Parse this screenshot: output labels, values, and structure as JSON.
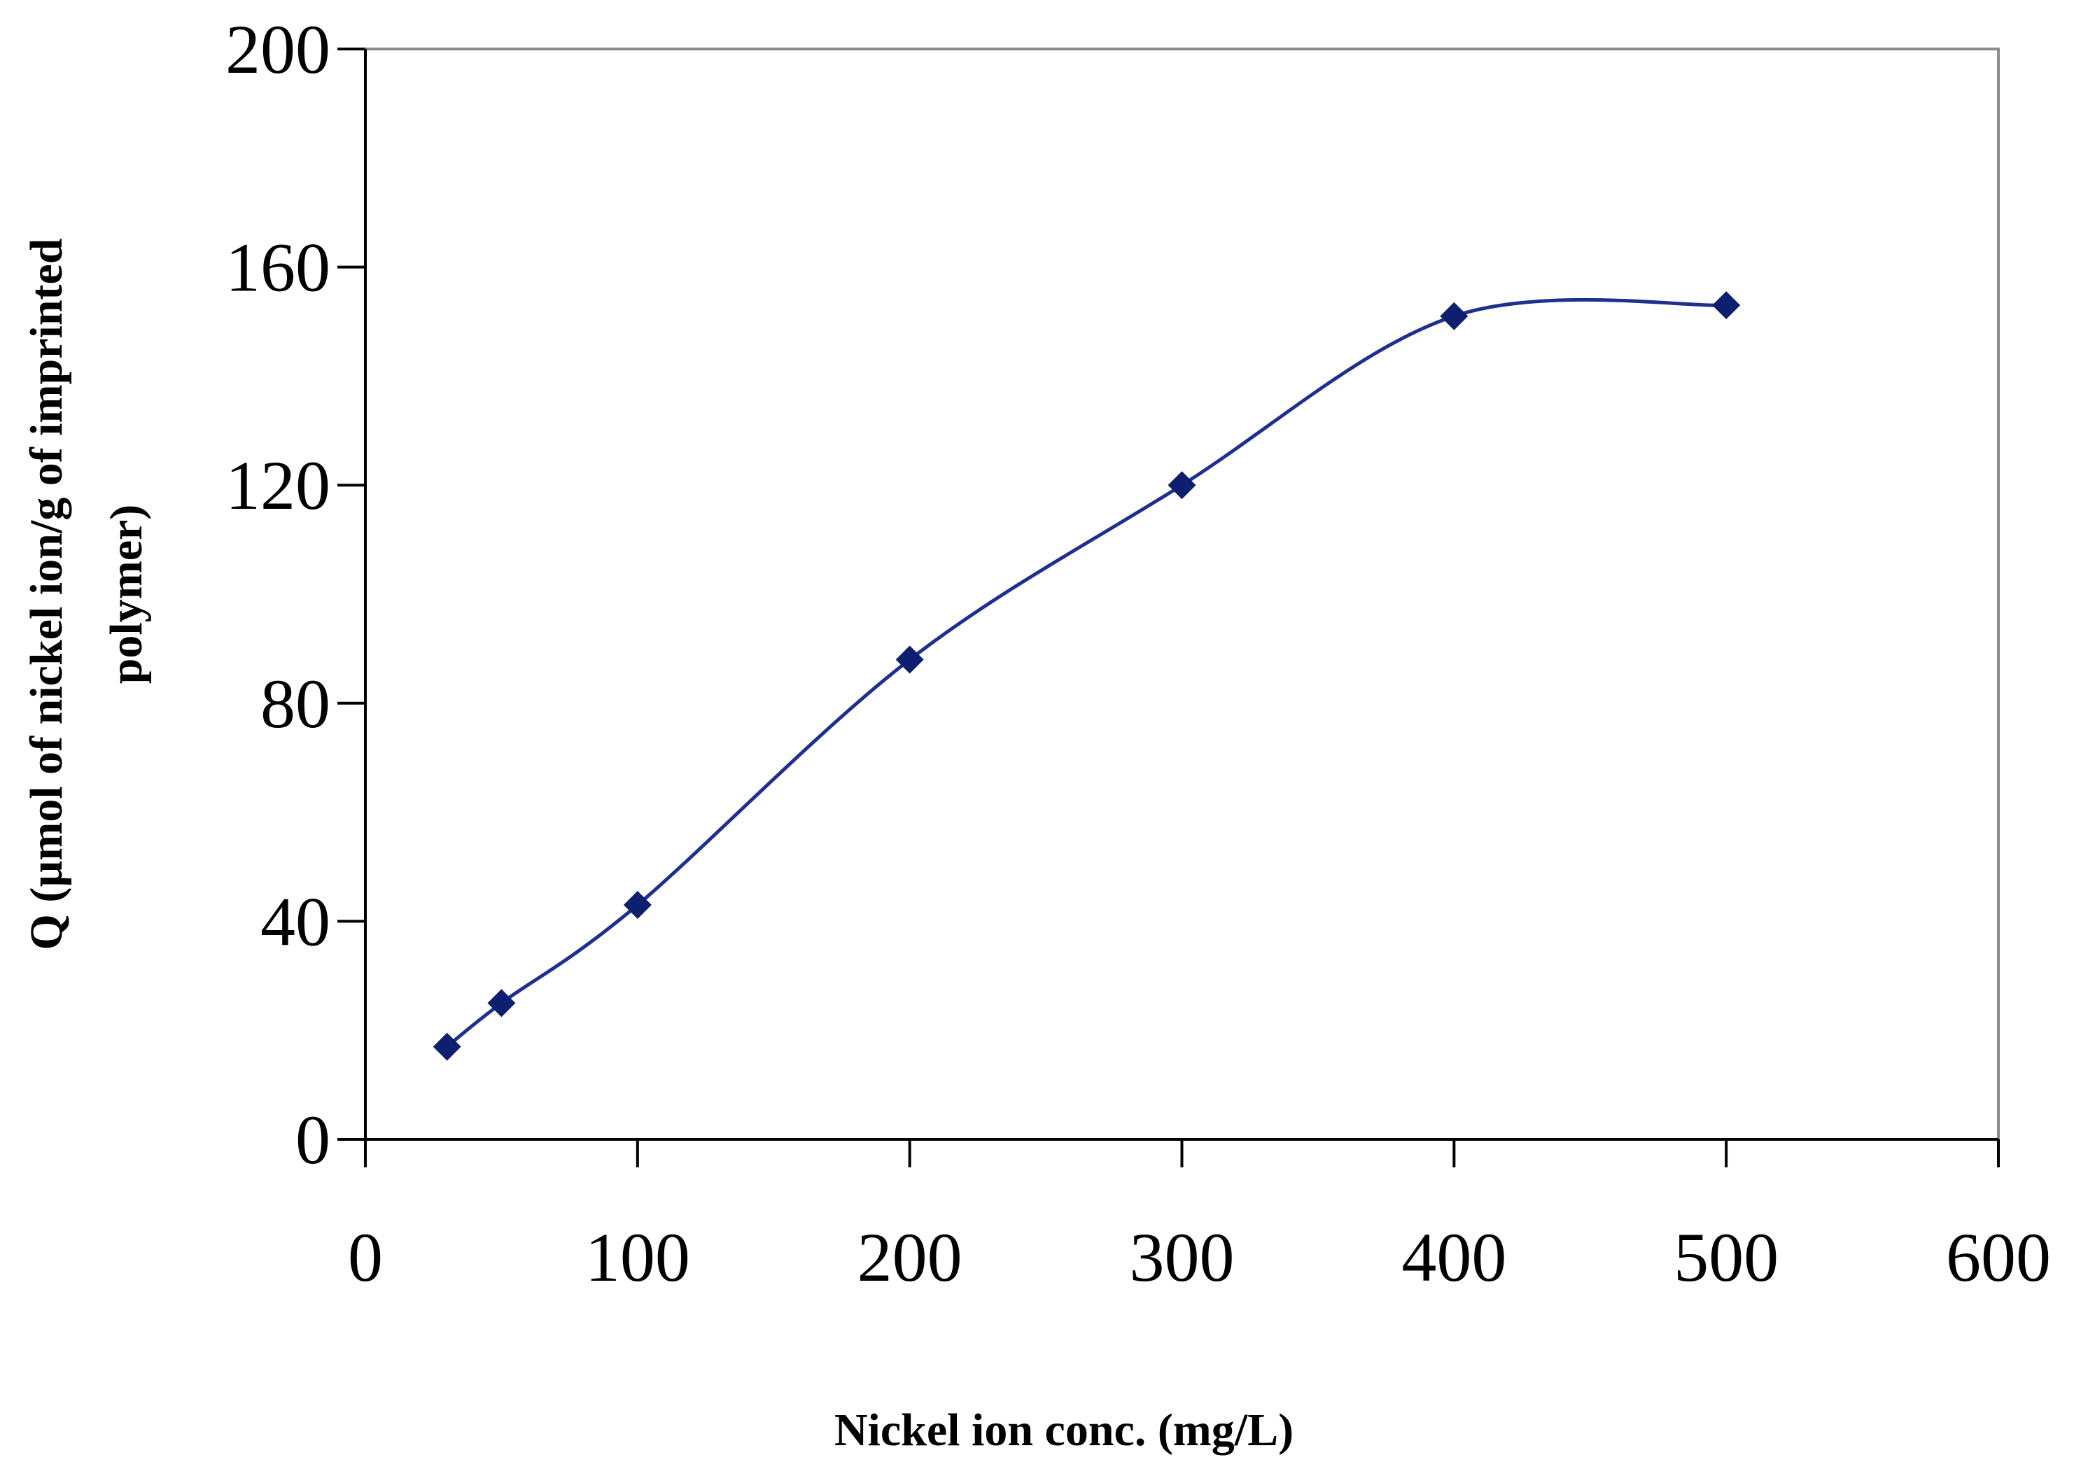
{
  "chart_data": {
    "type": "line",
    "title": "",
    "xlabel": "Nickel ion conc. (mg/L)",
    "ylabel_lines": [
      "Q (µmol of nickel ion/g of imprinted",
      "polymer)"
    ],
    "xlim": [
      0,
      600
    ],
    "ylim": [
      0,
      200
    ],
    "xticks": [
      0,
      100,
      200,
      300,
      400,
      500,
      600
    ],
    "yticks": [
      0,
      40,
      80,
      120,
      160,
      200
    ],
    "grid": false,
    "legend": "none",
    "series": [
      {
        "name": "Q",
        "color": "#1f2f8f",
        "marker": "diamond",
        "marker_color": "#0d1f6e",
        "smooth": true,
        "x": [
          30,
          50,
          100,
          200,
          300,
          400,
          500
        ],
        "y": [
          17,
          25,
          43,
          88,
          120,
          151,
          153
        ]
      }
    ]
  }
}
